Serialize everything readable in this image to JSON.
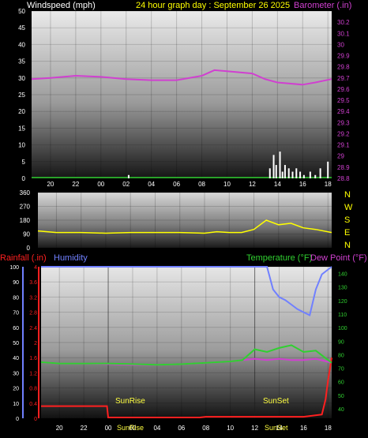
{
  "header": {
    "left_title": "Windspeed (mph)",
    "center_title": "24 hour graph day : September 26 2025",
    "right_title": "Barometer (.in)"
  },
  "middle": {
    "direction_labels": [
      "N",
      "W",
      "S",
      "E",
      "N"
    ]
  },
  "bottom_header": {
    "rain_label": "Rainfall (.in)",
    "humidity_label": "Humidity",
    "temp_label": "Temperature (°F)",
    "dew_label": "Dew Point (°F)"
  },
  "x_axis": {
    "tick_labels": [
      "20",
      "22",
      "00",
      "02",
      "04",
      "06",
      "08",
      "10",
      "12",
      "14",
      "16",
      "18"
    ]
  },
  "annotations": {
    "sunrise": "SunRise",
    "sunset": "SunSet"
  },
  "colors": {
    "windspeed": "#ffffff",
    "barometer": "#d040d0",
    "direction": "#ffff00",
    "rain": "#ff2020",
    "humidity": "#7080ff",
    "temperature": "#30d030",
    "dewpoint": "#d040d0",
    "title": "#ffff00"
  },
  "chart_data": [
    {
      "type": "line",
      "title": "",
      "xlabel": "",
      "ylabel": "Windspeed (mph)",
      "y2label": "Barometer (.in)",
      "x_ticks": [
        "20",
        "22",
        "00",
        "02",
        "04",
        "06",
        "08",
        "10",
        "12",
        "14",
        "16",
        "18"
      ],
      "ylim": [
        0,
        50
      ],
      "y_ticks": [
        0,
        5,
        10,
        15,
        20,
        25,
        30,
        35,
        40,
        45,
        50
      ],
      "y2lim": [
        28.8,
        30.3
      ],
      "y2_ticks": [
        "28.8",
        "28.9",
        "29",
        "29.1",
        "29.2",
        "29.3",
        "29.4",
        "29.5",
        "29.6",
        "29.7",
        "29.8",
        "29.9",
        "30",
        "30.1",
        "30.2"
      ],
      "series": [
        {
          "name": "Barometer (.in)",
          "axis": "right",
          "x": [
            18.5,
            20,
            22,
            24,
            26,
            28,
            30,
            32,
            33,
            34,
            36,
            37,
            38,
            40,
            41,
            42.3
          ],
          "values": [
            29.69,
            29.7,
            29.72,
            29.71,
            29.69,
            29.68,
            29.68,
            29.72,
            29.77,
            29.76,
            29.74,
            29.69,
            29.66,
            29.64,
            29.66,
            29.69
          ]
        },
        {
          "name": "Windspeed (mph)",
          "axis": "left",
          "type": "bar",
          "x": [
            26.2,
            37.4,
            37.7,
            37.9,
            38.2,
            38.4,
            38.6,
            38.9,
            39.2,
            39.5,
            39.8,
            40.1,
            40.6,
            41.0,
            41.4,
            42.0
          ],
          "values": [
            1,
            3,
            7,
            4,
            8,
            2,
            4,
            3,
            2,
            3,
            2,
            1,
            2,
            1,
            3,
            5
          ]
        }
      ]
    },
    {
      "type": "line",
      "title": "",
      "ylabel": "Wind direction",
      "ylim": [
        0,
        360
      ],
      "y_ticks": [
        0,
        90,
        180,
        270,
        360
      ],
      "series": [
        {
          "name": "Wind direction",
          "x": [
            18.5,
            20,
            22,
            24,
            26,
            28,
            30,
            32,
            33,
            34,
            35,
            36,
            37,
            38,
            39,
            40,
            41,
            42.3
          ],
          "values": [
            110,
            100,
            100,
            95,
            100,
            100,
            100,
            95,
            105,
            100,
            100,
            120,
            180,
            150,
            160,
            130,
            120,
            100
          ]
        }
      ]
    },
    {
      "type": "line",
      "title": "",
      "y_ticks_humidity": [
        0,
        10,
        20,
        30,
        40,
        50,
        60,
        70,
        80,
        90,
        100
      ],
      "y_ticks_rain": [
        "0",
        "0.4",
        "0.8",
        "1.2",
        "1.6",
        "2",
        "2.4",
        "2.8",
        "3.2",
        "3.6",
        "4"
      ],
      "y_ticks_temp": [
        40,
        50,
        60,
        70,
        80,
        90,
        100,
        110,
        120,
        130,
        140
      ],
      "humidity_lim": [
        0,
        100
      ],
      "rain_lim": [
        0,
        4
      ],
      "temp_lim": [
        33,
        145
      ],
      "series": [
        {
          "name": "Humidity",
          "axis": "humidity",
          "x": [
            18.5,
            20,
            22,
            24,
            26,
            28,
            30,
            32,
            34,
            36,
            37,
            37.5,
            38,
            38.5,
            39,
            39.5,
            40,
            40.5,
            41,
            41.5,
            42.3
          ],
          "values": [
            100,
            100,
            100,
            100,
            100,
            100,
            100,
            100,
            100,
            100,
            100,
            85,
            80,
            78,
            75,
            72,
            70,
            68,
            85,
            95,
            100
          ]
        },
        {
          "name": "Rainfall (.in)",
          "axis": "rain",
          "x": [
            18.5,
            23.9,
            24.0,
            26,
            28,
            30,
            31.5,
            32,
            34,
            36,
            38,
            40,
            41.5,
            41.8,
            42.0,
            42.3
          ],
          "values": [
            0.32,
            0.32,
            0.02,
            0.02,
            0.02,
            0.02,
            0.02,
            0.04,
            0.04,
            0.04,
            0.04,
            0.04,
            0.1,
            0.5,
            1.0,
            1.6
          ]
        },
        {
          "name": "Temperature (°F)",
          "axis": "temp",
          "x": [
            18.5,
            20,
            22,
            24,
            26,
            28,
            30,
            32,
            34,
            35,
            36,
            37,
            38,
            39,
            40,
            41,
            42.3
          ],
          "values": [
            74.5,
            73.5,
            73.5,
            73.5,
            73,
            72.5,
            73,
            74,
            75,
            76,
            84,
            82,
            85,
            87,
            82,
            83,
            74
          ]
        },
        {
          "name": "Dew Point (°F)",
          "axis": "temp",
          "x": [
            18.5,
            20,
            22,
            24,
            26,
            28,
            30,
            32,
            34,
            35,
            36,
            37,
            38,
            39,
            40,
            41,
            42.3
          ],
          "values": [
            74.5,
            73.5,
            73.5,
            73,
            72.5,
            72.5,
            73,
            74,
            75,
            76,
            77,
            76,
            77,
            76,
            76,
            77,
            74
          ]
        }
      ]
    }
  ]
}
